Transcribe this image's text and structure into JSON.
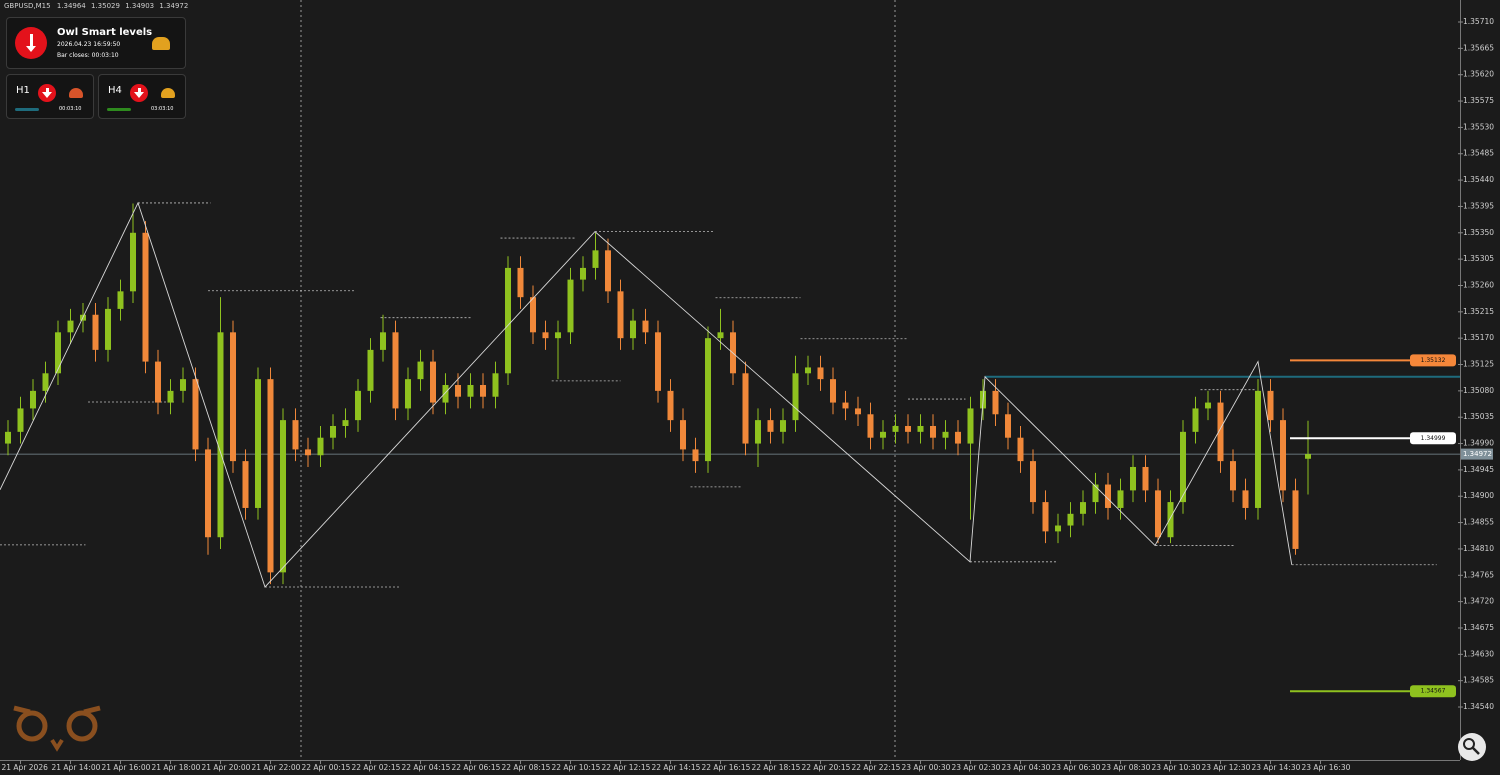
{
  "chart_data": {
    "type": "candlestick",
    "symbol": "GBPUSD,M15",
    "open": [
      1.3499,
      1.3501,
      1.3505,
      1.3508,
      1.3511,
      1.3518,
      1.352,
      1.3521,
      1.3515,
      1.3522,
      1.3525,
      1.3535,
      1.3513,
      1.3506,
      1.3508,
      1.351,
      1.3498,
      1.3483,
      1.3518,
      1.3496,
      1.3488,
      1.351,
      1.3477,
      1.3503,
      1.3498,
      1.3497,
      1.35,
      1.3502,
      1.3503,
      1.3508,
      1.3515,
      1.3518,
      1.3505,
      1.351,
      1.3513,
      1.3506,
      1.3509,
      1.3507,
      1.3509,
      1.3507,
      1.3511,
      1.3529,
      1.3524,
      1.3518,
      1.3517,
      1.3518,
      1.3527,
      1.3529,
      1.3532,
      1.3525,
      1.3517,
      1.352,
      1.3518,
      1.3508,
      1.3503,
      1.3498,
      1.3496,
      1.3517,
      1.3518,
      1.3511,
      1.3499,
      1.3503,
      1.3501,
      1.3503,
      1.3511,
      1.3512,
      1.351,
      1.3506,
      1.3505,
      1.3504,
      1.35,
      1.3501,
      1.3502,
      1.3501,
      1.3502,
      1.35,
      1.3501,
      1.3499,
      1.3505,
      1.3508,
      1.3504,
      1.35,
      1.3496,
      1.3489,
      1.3484,
      1.3485,
      1.3487,
      1.3489,
      1.3492,
      1.3488,
      1.3491,
      1.3495,
      1.3491,
      1.3483,
      1.3489,
      1.3501,
      1.3505,
      1.3506,
      1.3496,
      1.3491,
      1.3488,
      1.3508,
      1.3503,
      1.3491,
      1.34964
    ],
    "high": [
      1.3503,
      1.3507,
      1.351,
      1.3513,
      1.352,
      1.3522,
      1.3523,
      1.3523,
      1.3524,
      1.3527,
      1.354,
      1.3537,
      1.3515,
      1.351,
      1.3512,
      1.3512,
      1.35,
      1.3524,
      1.352,
      1.3498,
      1.3512,
      1.3512,
      1.3505,
      1.3505,
      1.35,
      1.3502,
      1.3504,
      1.3505,
      1.351,
      1.3517,
      1.3521,
      1.352,
      1.3512,
      1.3515,
      1.3515,
      1.3511,
      1.3511,
      1.3511,
      1.3511,
      1.3513,
      1.3531,
      1.3531,
      1.3526,
      1.352,
      1.352,
      1.3529,
      1.3531,
      1.3535,
      1.3534,
      1.3527,
      1.3522,
      1.3522,
      1.352,
      1.351,
      1.3505,
      1.35,
      1.3519,
      1.3522,
      1.352,
      1.3513,
      1.3505,
      1.3505,
      1.3505,
      1.3514,
      1.3514,
      1.3514,
      1.3512,
      1.3508,
      1.3507,
      1.3506,
      1.3503,
      1.3504,
      1.3504,
      1.3504,
      1.3504,
      1.3503,
      1.3503,
      1.3507,
      1.351,
      1.351,
      1.3506,
      1.3502,
      1.3498,
      1.3491,
      1.3487,
      1.3489,
      1.3491,
      1.3494,
      1.3494,
      1.3493,
      1.3497,
      1.3497,
      1.3493,
      1.3491,
      1.3503,
      1.3507,
      1.3508,
      1.3508,
      1.3498,
      1.3493,
      1.351,
      1.351,
      1.3505,
      1.3493,
      1.35029
    ],
    "low": [
      1.3497,
      1.3499,
      1.3503,
      1.3506,
      1.3509,
      1.3516,
      1.3518,
      1.3513,
      1.3513,
      1.352,
      1.3523,
      1.3511,
      1.3504,
      1.3504,
      1.3506,
      1.3496,
      1.348,
      1.3481,
      1.3494,
      1.3486,
      1.3486,
      1.3475,
      1.3475,
      1.3496,
      1.3495,
      1.3495,
      1.3498,
      1.35,
      1.3501,
      1.3506,
      1.3513,
      1.3503,
      1.3503,
      1.3508,
      1.3504,
      1.3504,
      1.3505,
      1.3505,
      1.3505,
      1.3505,
      1.3509,
      1.3522,
      1.3516,
      1.3515,
      1.351,
      1.3516,
      1.3525,
      1.3527,
      1.3523,
      1.3515,
      1.3515,
      1.3516,
      1.3506,
      1.3501,
      1.3496,
      1.3494,
      1.3494,
      1.3515,
      1.3509,
      1.3497,
      1.3495,
      1.3499,
      1.3499,
      1.3501,
      1.3509,
      1.3508,
      1.3504,
      1.3503,
      1.3502,
      1.3498,
      1.3498,
      1.3499,
      1.3499,
      1.3499,
      1.3498,
      1.3498,
      1.3497,
      1.3486,
      1.3503,
      1.3502,
      1.3498,
      1.3494,
      1.3487,
      1.3482,
      1.3482,
      1.3483,
      1.3485,
      1.3487,
      1.3486,
      1.3486,
      1.3489,
      1.3489,
      1.3482,
      1.3482,
      1.3487,
      1.3499,
      1.3503,
      1.3494,
      1.3489,
      1.3486,
      1.3486,
      1.3501,
      1.3489,
      1.348,
      1.34903
    ],
    "close": [
      1.3501,
      1.3505,
      1.3508,
      1.3511,
      1.3518,
      1.352,
      1.3521,
      1.3515,
      1.3522,
      1.3525,
      1.3535,
      1.3513,
      1.3506,
      1.3508,
      1.351,
      1.3498,
      1.3483,
      1.3518,
      1.3496,
      1.3488,
      1.351,
      1.3477,
      1.3503,
      1.3498,
      1.3497,
      1.35,
      1.3502,
      1.3503,
      1.3508,
      1.3515,
      1.3518,
      1.3505,
      1.351,
      1.3513,
      1.3506,
      1.3509,
      1.3507,
      1.3509,
      1.3507,
      1.3511,
      1.3529,
      1.3524,
      1.3518,
      1.3517,
      1.3518,
      1.3527,
      1.3529,
      1.3532,
      1.3525,
      1.3517,
      1.352,
      1.3518,
      1.3508,
      1.3503,
      1.3498,
      1.3496,
      1.3517,
      1.3518,
      1.3511,
      1.3499,
      1.3503,
      1.3501,
      1.3503,
      1.3511,
      1.3512,
      1.351,
      1.3506,
      1.3505,
      1.3504,
      1.35,
      1.3501,
      1.3502,
      1.3501,
      1.3502,
      1.35,
      1.3501,
      1.3499,
      1.3505,
      1.3508,
      1.3504,
      1.35,
      1.3496,
      1.3489,
      1.3484,
      1.3485,
      1.3487,
      1.3489,
      1.3492,
      1.3488,
      1.3491,
      1.3495,
      1.3491,
      1.3483,
      1.3489,
      1.3501,
      1.3505,
      1.3506,
      1.3496,
      1.3491,
      1.3488,
      1.3508,
      1.3503,
      1.3491,
      1.3481,
      1.34972
    ],
    "up_color": "#8fc21f",
    "down_color": "#f0883a",
    "xlim": [
      -0.64,
      116.16
    ],
    "xticks": [
      {
        "value": 1,
        "label": "21 Apr 2026"
      },
      {
        "value": 5,
        "label": "21 Apr 14:00"
      },
      {
        "value": 9,
        "label": "21 Apr 16:00"
      },
      {
        "value": 13,
        "label": "21 Apr 18:00"
      },
      {
        "value": 17,
        "label": "21 Apr 20:00"
      },
      {
        "value": 21,
        "label": "21 Apr 22:00"
      },
      {
        "value": 25,
        "label": "22 Apr 00:15"
      },
      {
        "value": 29,
        "label": "22 Apr 02:15"
      },
      {
        "value": 33,
        "label": "22 Apr 04:15"
      },
      {
        "value": 37,
        "label": "22 Apr 06:15"
      },
      {
        "value": 41,
        "label": "22 Apr 08:15"
      },
      {
        "value": 45,
        "label": "22 Apr 10:15"
      },
      {
        "value": 49,
        "label": "22 Apr 12:15"
      },
      {
        "value": 53,
        "label": "22 Apr 14:15"
      },
      {
        "value": 57,
        "label": "22 Apr 16:15"
      },
      {
        "value": 61,
        "label": "22 Apr 18:15"
      },
      {
        "value": 65,
        "label": "22 Apr 20:15"
      },
      {
        "value": 69,
        "label": "22 Apr 22:15"
      },
      {
        "value": 73,
        "label": "23 Apr 00:30"
      },
      {
        "value": 77,
        "label": "23 Apr 02:30"
      },
      {
        "value": 81,
        "label": "23 Apr 04:30"
      },
      {
        "value": 85,
        "label": "23 Apr 06:30"
      },
      {
        "value": 89,
        "label": "23 Apr 08:30"
      },
      {
        "value": 93,
        "label": "23 Apr 10:30"
      },
      {
        "value": 97,
        "label": "23 Apr 12:30"
      },
      {
        "value": 101,
        "label": "23 Apr 14:30"
      },
      {
        "value": 105,
        "label": "23 Apr 16:30"
      }
    ],
    "ylim": [
      1.344495,
      1.357476
    ],
    "yticks": [
      {
        "value": 1.3571,
        "label": "1.35710"
      },
      1.35665,
      {
        "value": 1.3562,
        "label": "1.35620"
      },
      1.35575,
      {
        "value": 1.3553,
        "label": "1.35530"
      },
      1.35485,
      {
        "value": 1.3544,
        "label": "1.35440"
      },
      1.35395,
      {
        "value": 1.3535,
        "label": "1.35350"
      },
      1.35305,
      {
        "value": 1.3526,
        "label": "1.35260"
      },
      1.35215,
      {
        "value": 1.3517,
        "label": "1.35170"
      },
      1.35125,
      {
        "value": 1.3508,
        "label": "1.35080"
      },
      1.35035,
      {
        "value": 1.3499,
        "label": "1.34990"
      },
      1.34945,
      {
        "value": 1.349,
        "label": "1.34900"
      },
      1.34855,
      {
        "value": 1.3481,
        "label": "1.34810"
      },
      1.34765,
      {
        "value": 1.3472,
        "label": "1.34720"
      },
      1.34675,
      {
        "value": 1.3463,
        "label": "1.34630"
      },
      1.34585,
      {
        "value": 1.3454,
        "label": "1.34540"
      }
    ],
    "price_line_color": "#7f9099",
    "levels": [
      {
        "value": 1.35132,
        "color": "#f5873a"
      },
      {
        "value": 1.34999,
        "color": "#ffffff"
      },
      {
        "value": 1.34567,
        "color": "#8fc21f"
      }
    ],
    "channel_line": {
      "x": 78.16,
      "value": 1.35104,
      "color": "#1e6b7c"
    },
    "zigzag": {
      "color": "#d8d8d8",
      "x": [
        -0.64,
        10.4,
        20.56,
        46.96,
        76.96,
        78.16,
        91.76,
        100,
        102.7
      ],
      "y": [
        1.34911,
        1.35401,
        1.34745,
        1.35352,
        1.34788,
        1.35104,
        1.34816,
        1.3513,
        1.34783
      ]
    },
    "swing_levels": [
      {
        "x": [
          10.4,
          16.2
        ],
        "value": 1.35401
      },
      {
        "x": [
          20.56,
          31.4
        ],
        "value": 1.34745
      },
      {
        "x": [
          16,
          27.8
        ],
        "value": 1.35251
      },
      {
        "x": [
          39.4,
          45.4
        ],
        "value": 1.35341
      },
      {
        "x": [
          46.96,
          56.4
        ],
        "value": 1.35352
      },
      {
        "x": [
          54.6,
          58.7
        ],
        "value": 1.34916
      },
      {
        "x": [
          56.6,
          63.4
        ],
        "value": 1.35239
      },
      {
        "x": [
          63.4,
          71.9
        ],
        "value": 1.35169
      },
      {
        "x": [
          76.96,
          83.9
        ],
        "value": 1.34788
      },
      {
        "x": [
          102.7,
          114.3
        ],
        "value": 1.34783
      },
      {
        "x": [
          -0.64,
          6.2
        ],
        "value": 1.34817
      },
      {
        "x": [
          6.4,
          13.4
        ],
        "value": 1.35061
      },
      {
        "x": [
          29.8,
          37
        ],
        "value": 1.35205
      },
      {
        "x": [
          43.5,
          49
        ],
        "value": 1.35097
      },
      {
        "x": [
          72,
          76.6
        ],
        "value": 1.35066
      },
      {
        "x": [
          91.8,
          98.2
        ],
        "value": 1.34816
      },
      {
        "x": [
          95.4,
          99.8
        ],
        "value": 1.35082
      }
    ]
  },
  "panel": {
    "title": "Owl Smart levels",
    "time": "2026.04.23 16:59:50",
    "bar_close": "Bar closes: 00:03:10",
    "h1": {
      "label": "H1",
      "timer": "00:03:10"
    },
    "h4": {
      "label": "H4",
      "timer": "03:03:10"
    }
  }
}
